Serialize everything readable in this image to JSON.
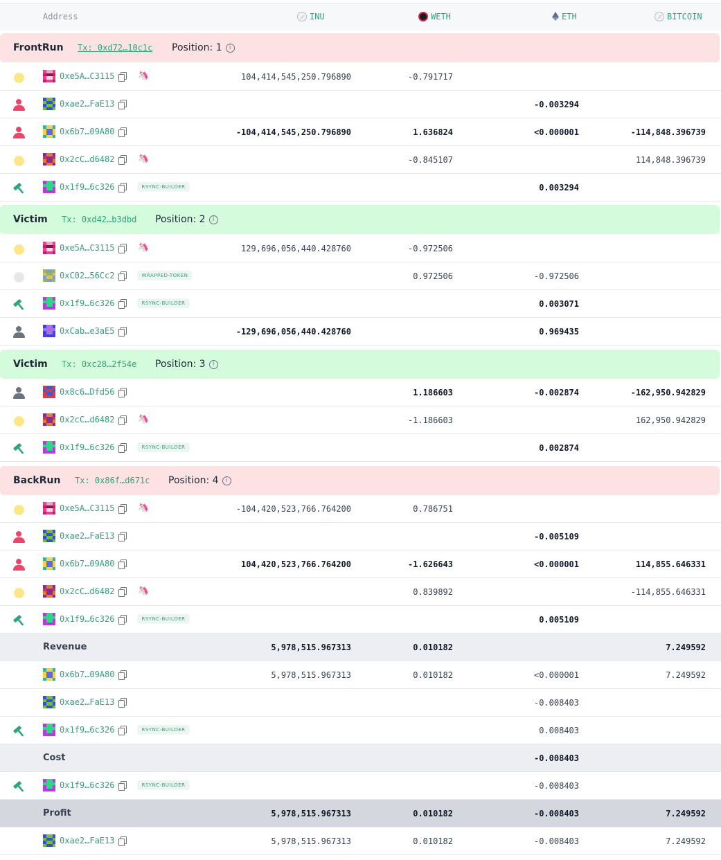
{
  "header": {
    "address": "Address",
    "tokens": [
      {
        "name": "INU",
        "icon": "inu-token-icon"
      },
      {
        "name": "WETH",
        "icon": "weth-token-icon"
      },
      {
        "name": "ETH",
        "icon": "eth-token-icon"
      },
      {
        "name": "BITCOIN",
        "icon": "bitcoin-token-icon"
      }
    ]
  },
  "colors": {
    "accent": "#2fa37a",
    "frontrun_bg": "#fde2e4",
    "victim_bg": "#d3fbdc",
    "person_red": "#ef4469"
  },
  "sections": [
    {
      "kind": "FrontRun",
      "tx": "Tx: 0xd72…10c1c",
      "position": "Position: 1"
    },
    {
      "kind": "Victim",
      "tx": "Tx: 0xd42…b3dbd",
      "position": "Position: 2"
    },
    {
      "kind": "Victim",
      "tx": "Tx: 0xc28…2f54e",
      "position": "Position: 3"
    },
    {
      "kind": "BackRun",
      "tx": "Tx: 0x86f…d671c",
      "position": "Position: 4"
    }
  ],
  "rows": [
    {
      "addr": "0xe5A…C3115",
      "inu": "104,414,545,250.796890",
      "weth": "-0.791717",
      "eth": "",
      "btc": ""
    },
    {
      "addr": "0xae2…FaE13",
      "inu": "",
      "weth": "",
      "eth": "-0.003294",
      "btc": ""
    },
    {
      "addr": "0x6b7…09A80",
      "inu": "-104,414,545,250.796890",
      "weth": "1.636824",
      "eth": "<0.000001",
      "btc": "-114,848.396739"
    },
    {
      "addr": "0x2cC…d6482",
      "inu": "",
      "weth": "-0.845107",
      "eth": "",
      "btc": "114,848.396739"
    },
    {
      "addr": "0x1f9…6c326",
      "badge": "RSYNC-BUILDER",
      "inu": "",
      "weth": "",
      "eth": "0.003294",
      "btc": ""
    },
    {
      "addr": "0xe5A…C3115",
      "inu": "129,696,056,440.428760",
      "weth": "-0.972506",
      "eth": "",
      "btc": ""
    },
    {
      "addr": "0xC02…56Cc2",
      "badge": "WRAPPED-TOKEN",
      "inu": "",
      "weth": "0.972506",
      "eth": "-0.972506",
      "btc": ""
    },
    {
      "addr": "0x1f9…6c326",
      "badge": "RSYNC-BUILDER",
      "inu": "",
      "weth": "",
      "eth": "0.003071",
      "btc": ""
    },
    {
      "addr": "0xCab…e3aE5",
      "inu": "-129,696,056,440.428760",
      "weth": "",
      "eth": "0.969435",
      "btc": ""
    },
    {
      "addr": "0x8c6…Dfd56",
      "inu": "",
      "weth": "1.186603",
      "eth": "-0.002874",
      "btc": "-162,950.942829"
    },
    {
      "addr": "0x2cC…d6482",
      "inu": "",
      "weth": "-1.186603",
      "eth": "",
      "btc": "162,950.942829"
    },
    {
      "addr": "0x1f9…6c326",
      "badge": "RSYNC-BUILDER",
      "inu": "",
      "weth": "",
      "eth": "0.002874",
      "btc": ""
    },
    {
      "addr": "0xe5A…C3115",
      "inu": "-104,420,523,766.764200",
      "weth": "0.786751",
      "eth": "",
      "btc": ""
    },
    {
      "addr": "0xae2…FaE13",
      "inu": "",
      "weth": "",
      "eth": "-0.005109",
      "btc": ""
    },
    {
      "addr": "0x6b7…09A80",
      "inu": "104,420,523,766.764200",
      "weth": "-1.626643",
      "eth": "<0.000001",
      "btc": "114,855.646331"
    },
    {
      "addr": "0x2cC…d6482",
      "inu": "",
      "weth": "0.839892",
      "eth": "",
      "btc": "-114,855.646331"
    },
    {
      "addr": "0x1f9…6c326",
      "badge": "RSYNC-BUILDER",
      "inu": "",
      "weth": "",
      "eth": "0.005109",
      "btc": ""
    },
    {
      "label": "Revenue",
      "inu": "5,978,515.967313",
      "weth": "0.010182",
      "eth": "",
      "btc": "7.249592"
    },
    {
      "addr": "0x6b7…09A80",
      "inu": "5,978,515.967313",
      "weth": "0.010182",
      "eth": "<0.000001",
      "btc": "7.249592"
    },
    {
      "addr": "0xae2…FaE13",
      "inu": "",
      "weth": "",
      "eth": "-0.008403",
      "btc": ""
    },
    {
      "addr": "0x1f9…6c326",
      "badge": "RSYNC-BUILDER",
      "inu": "",
      "weth": "",
      "eth": "0.008403",
      "btc": ""
    },
    {
      "label": "Cost",
      "inu": "",
      "weth": "",
      "eth": "-0.008403",
      "btc": ""
    },
    {
      "addr": "0x1f9…6c326",
      "badge": "RSYNC-BUILDER",
      "inu": "",
      "weth": "",
      "eth": "-0.008403",
      "btc": ""
    },
    {
      "label": "Profit",
      "inu": "5,978,515.967313",
      "weth": "0.010182",
      "eth": "-0.008403",
      "btc": "7.249592"
    },
    {
      "addr": "0xae2…FaE13",
      "inu": "5,978,515.967313",
      "weth": "0.010182",
      "eth": "-0.008403",
      "btc": "7.249592"
    }
  ]
}
